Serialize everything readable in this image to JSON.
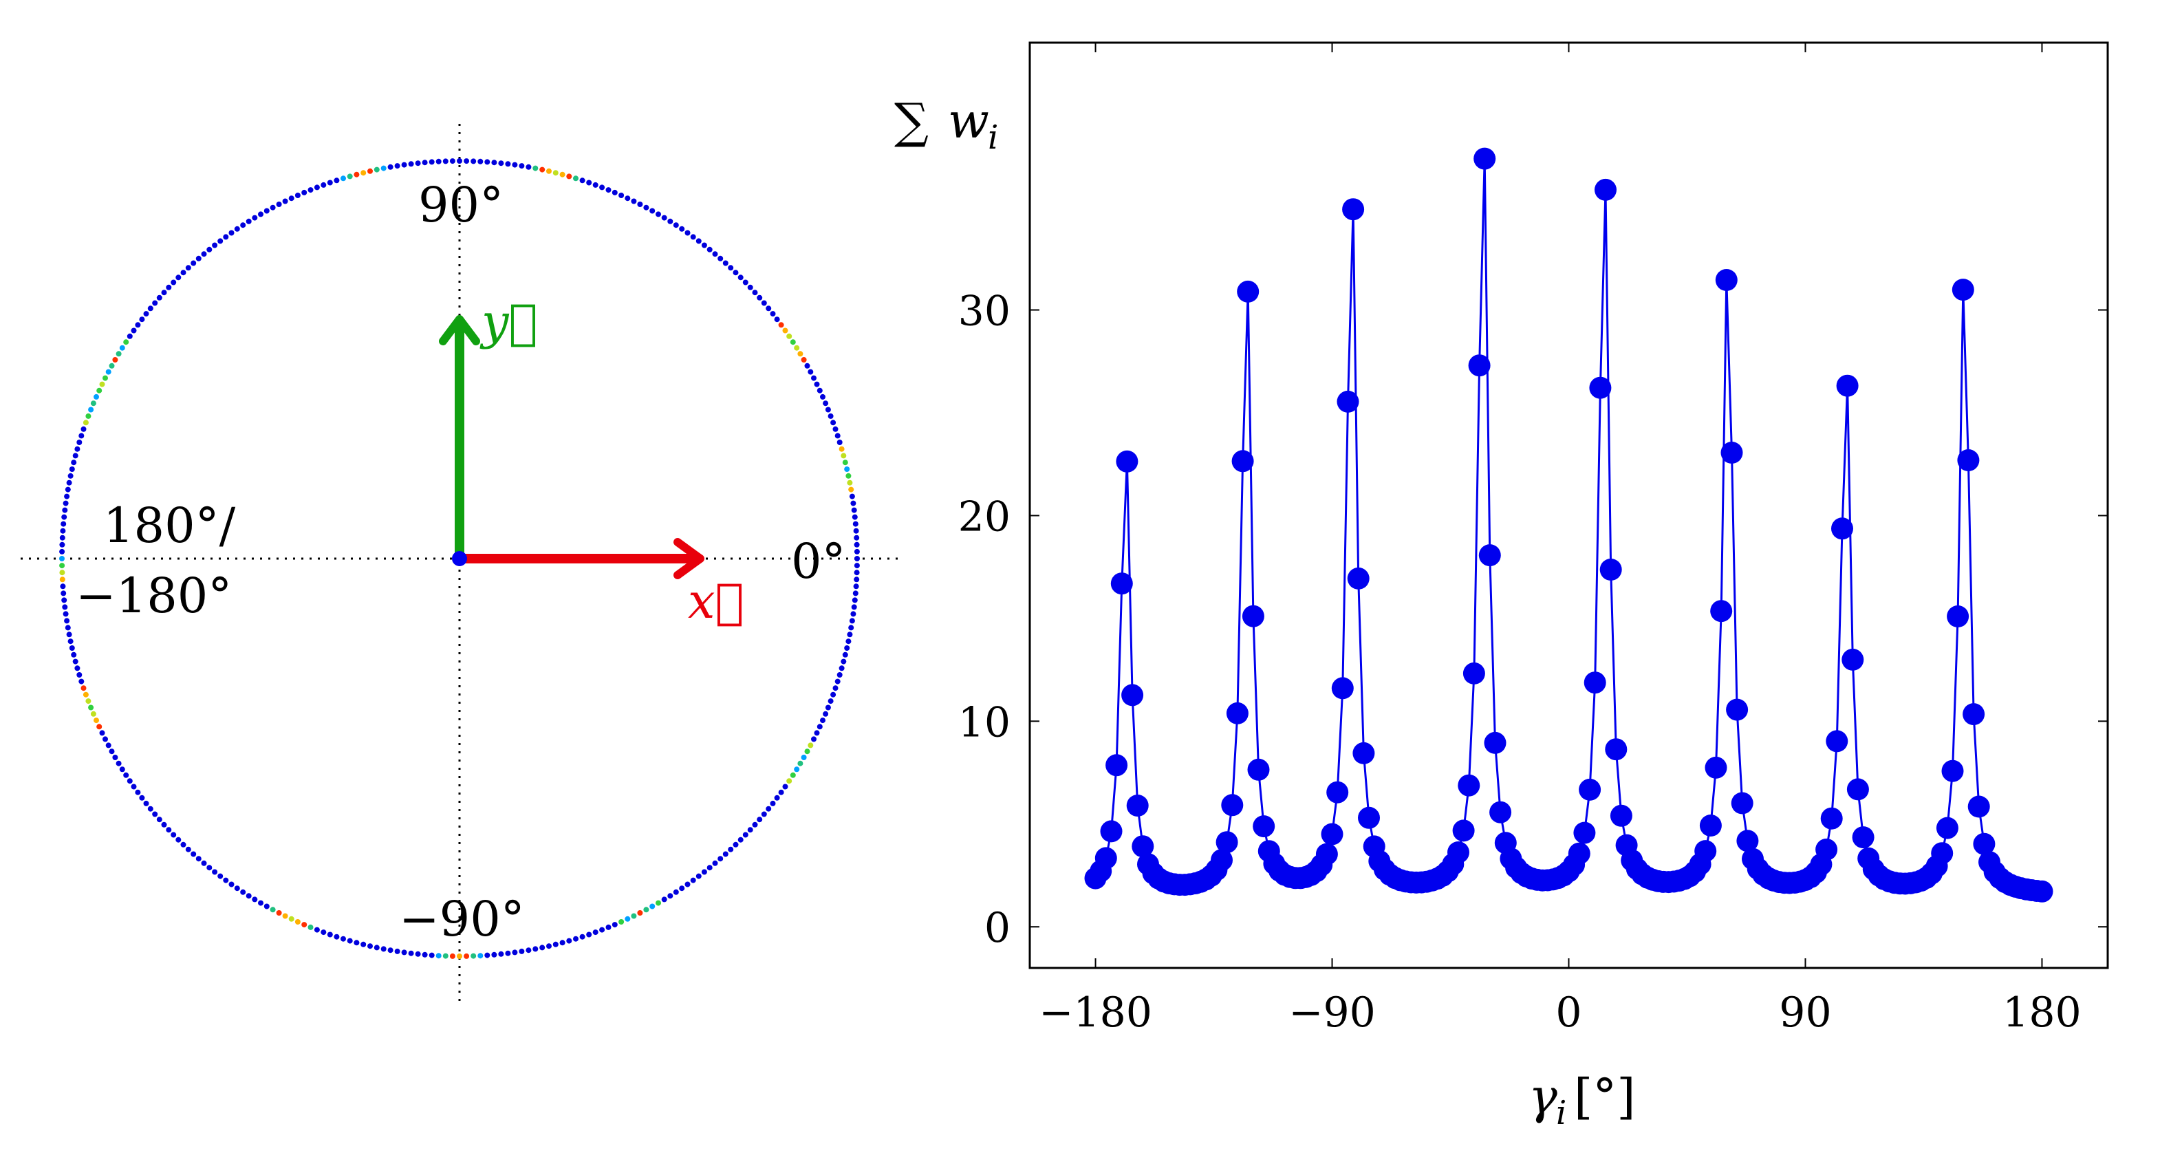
{
  "chart_data": [
    {
      "type": "scatter",
      "angle_labels": {
        "deg0": "0°",
        "deg90": "90°",
        "deg180_top": "180°/",
        "deg180_bottom": "−180°",
        "degminus90": "−90°"
      },
      "vectors": {
        "x": {
          "label": "x⃗",
          "color": "#e8000b",
          "angle_deg": 0
        },
        "y": {
          "label": "y⃗",
          "color": "#10a010",
          "angle_deg": 90
        }
      },
      "ring_point_color": "#0000dd",
      "hot_angles_deg": [
        -180,
        -158,
        -115,
        -90,
        -63,
        -31,
        13,
        33,
        76,
        104,
        150,
        157
      ]
    },
    {
      "type": "line",
      "xlabel_symbol": "γ",
      "xlabel_sub": "i",
      "xlabel_unit": " [°]",
      "ylabel_sum": "∑",
      "ylabel_symbol": "w",
      "ylabel_sub": "i",
      "xlim": [
        -205,
        205
      ],
      "ylim": [
        -2,
        43
      ],
      "xticks": [
        -180,
        -90,
        0,
        90,
        180
      ],
      "xtick_labels": [
        "−180",
        "−90",
        "0",
        "90",
        "180"
      ],
      "yticks": [
        0,
        10,
        20,
        30
      ],
      "ytick_labels": [
        "0",
        "10",
        "20",
        "30"
      ],
      "series_color": "#0000ee",
      "peaks": [
        {
          "center": -168.5,
          "height": 23.6
        },
        {
          "center": -122.5,
          "height": 32.2
        },
        {
          "center": -82.5,
          "height": 36.4
        },
        {
          "center": -32.5,
          "height": 39.0
        },
        {
          "center": 13.5,
          "height": 37.4
        },
        {
          "center": 60.5,
          "height": 32.8
        },
        {
          "center": 105.5,
          "height": 27.4
        },
        {
          "center": 150.5,
          "height": 32.4
        }
      ],
      "baseline": 1.5,
      "x_start": -180,
      "x_end": 180,
      "x_step": 2
    }
  ]
}
